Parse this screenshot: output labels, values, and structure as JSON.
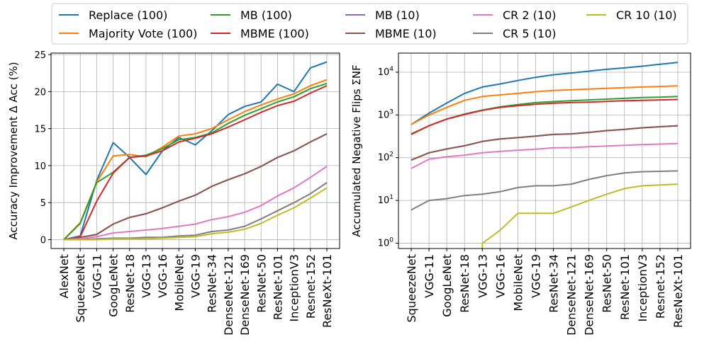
{
  "legend": {
    "placement": "top-center",
    "ncol": 5
  },
  "chart_data": [
    {
      "type": "line",
      "ylabel": "Accuracy Improvement Δ Acc (%)",
      "xlabel": "",
      "y_scale": "linear",
      "ylim": [
        -1.2,
        25.2
      ],
      "yticks": [
        "0",
        "5",
        "10",
        "15",
        "20",
        "25"
      ],
      "grid": true,
      "categories": [
        "AlexNet",
        "SqueezeNet",
        "VGG-11",
        "GoogLeNet",
        "ResNet-18",
        "VGG-13",
        "VGG-16",
        "MobileNet",
        "VGG-19",
        "ResNet-34",
        "DenseNet-121",
        "DenseNet-169",
        "ResNet-50",
        "ResNet-101",
        "InceptionV3",
        "Resnet-152",
        "ResNeXt-101"
      ],
      "series": [
        {
          "name": "Replace (100)",
          "color": "#1f77b4",
          "values": [
            0,
            0.5,
            8.0,
            13.1,
            11.1,
            8.8,
            12.0,
            13.8,
            12.8,
            14.7,
            16.9,
            18.0,
            18.6,
            21.0,
            20.0,
            23.2,
            24.0
          ]
        },
        {
          "name": "Majority Vote (100)",
          "color": "#ff7f0e",
          "values": [
            0,
            2.3,
            7.8,
            11.3,
            11.5,
            11.2,
            12.5,
            14.0,
            14.3,
            15.0,
            16.2,
            17.3,
            18.2,
            19.0,
            19.7,
            20.8,
            21.6
          ]
        },
        {
          "name": "MB (100)",
          "color": "#2ca02c",
          "values": [
            0,
            2.2,
            7.7,
            9.1,
            11.1,
            11.4,
            12.3,
            13.5,
            13.8,
            14.4,
            15.7,
            16.8,
            17.7,
            18.6,
            19.3,
            20.4,
            21.1
          ]
        },
        {
          "name": "MBME (100)",
          "color": "#d62728",
          "values": [
            0,
            0.4,
            5.2,
            9.0,
            11.1,
            11.3,
            12.0,
            13.2,
            13.7,
            14.3,
            15.2,
            16.2,
            17.2,
            18.1,
            18.7,
            19.8,
            20.8
          ]
        },
        {
          "name": "MB (10)",
          "color": "#9467bd",
          "values": [
            0,
            0.3,
            0.7,
            2.1,
            3.0,
            3.5,
            4.3,
            5.2,
            6.0,
            7.2,
            8.1,
            8.9,
            9.9,
            11.1,
            12.0,
            13.2,
            14.3
          ]
        },
        {
          "name": "MBME (10)",
          "color": "#8c564b",
          "values": [
            0,
            0.3,
            0.7,
            2.1,
            3.0,
            3.5,
            4.3,
            5.2,
            6.0,
            7.2,
            8.1,
            8.9,
            9.9,
            11.1,
            12.0,
            13.2,
            14.3
          ]
        },
        {
          "name": "CR 2 (10)",
          "color": "#e377c2",
          "values": [
            0,
            0.1,
            0.4,
            0.9,
            1.1,
            1.3,
            1.5,
            1.8,
            2.1,
            2.7,
            3.1,
            3.7,
            4.6,
            5.9,
            7.0,
            8.4,
            9.9
          ]
        },
        {
          "name": "CR 5 (10)",
          "color": "#7f7f7f",
          "values": [
            0,
            0.0,
            0.1,
            0.2,
            0.2,
            0.3,
            0.3,
            0.5,
            0.6,
            1.1,
            1.3,
            1.8,
            2.8,
            3.9,
            5.0,
            6.2,
            7.7
          ]
        },
        {
          "name": "CR 10 (10)",
          "color": "#bcbd22",
          "values": [
            0,
            0.0,
            0.0,
            0.1,
            0.1,
            0.1,
            0.2,
            0.3,
            0.4,
            0.8,
            1.0,
            1.4,
            2.2,
            3.3,
            4.3,
            5.6,
            7.0
          ]
        }
      ]
    },
    {
      "type": "line",
      "ylabel": "Accumulated Negative Flips ΣNF",
      "xlabel": "",
      "y_scale": "log",
      "ylim": [
        0.75,
        28000
      ],
      "yticks": [
        1,
        10,
        100,
        1000,
        10000
      ],
      "grid": true,
      "categories": [
        "SqueezeNet",
        "VGG-11",
        "GoogLeNet",
        "ResNet-18",
        "VGG-13",
        "VGG-16",
        "MobileNet",
        "VGG-19",
        "ResNet-34",
        "DenseNet-121",
        "DenseNet-169",
        "ResNet-50",
        "ResNet-101",
        "InceptionV3",
        "Resnet-152",
        "ResNeXt-101"
      ],
      "series": [
        {
          "name": "Replace (100)",
          "color": "#1f77b4",
          "values": [
            600,
            1100,
            1900,
            3200,
            4500,
            5300,
            6400,
            7600,
            8700,
            9600,
            10600,
            11700,
            12600,
            13800,
            15300,
            17000
          ]
        },
        {
          "name": "Majority Vote (100)",
          "color": "#ff7f0e",
          "values": [
            600,
            1000,
            1500,
            2200,
            2700,
            2950,
            3200,
            3500,
            3750,
            3900,
            4050,
            4200,
            4350,
            4500,
            4650,
            4800
          ]
        },
        {
          "name": "MB (100)",
          "color": "#2ca02c",
          "values": [
            360,
            560,
            800,
            1050,
            1300,
            1550,
            1750,
            1950,
            2050,
            2150,
            2250,
            2350,
            2450,
            2550,
            2600,
            2700
          ]
        },
        {
          "name": "MBME (100)",
          "color": "#d62728",
          "values": [
            350,
            560,
            800,
            1030,
            1280,
            1500,
            1650,
            1780,
            1880,
            1950,
            2000,
            2070,
            2150,
            2200,
            2250,
            2300
          ]
        },
        {
          "name": "MB (10)",
          "color": "#9467bd",
          "values": [
            88,
            130,
            160,
            190,
            240,
            275,
            295,
            320,
            350,
            360,
            390,
            430,
            460,
            500,
            530,
            560
          ]
        },
        {
          "name": "MBME (10)",
          "color": "#8c564b",
          "values": [
            88,
            130,
            160,
            190,
            240,
            275,
            295,
            320,
            350,
            360,
            390,
            430,
            460,
            500,
            530,
            560
          ]
        },
        {
          "name": "CR 2 (10)",
          "color": "#e377c2",
          "values": [
            56,
            92,
            105,
            115,
            130,
            140,
            150,
            158,
            170,
            172,
            180,
            188,
            195,
            202,
            208,
            215
          ]
        },
        {
          "name": "CR 5 (10)",
          "color": "#7f7f7f",
          "values": [
            6,
            10,
            11,
            13,
            14,
            16,
            20,
            22,
            22,
            24,
            31,
            38,
            44,
            47,
            48,
            49
          ]
        },
        {
          "name": "CR 10 (10)",
          "color": "#bcbd22",
          "values": [
            null,
            null,
            null,
            null,
            1,
            2,
            5,
            5,
            5,
            7,
            10,
            14,
            19,
            22,
            23,
            24
          ]
        }
      ]
    }
  ]
}
